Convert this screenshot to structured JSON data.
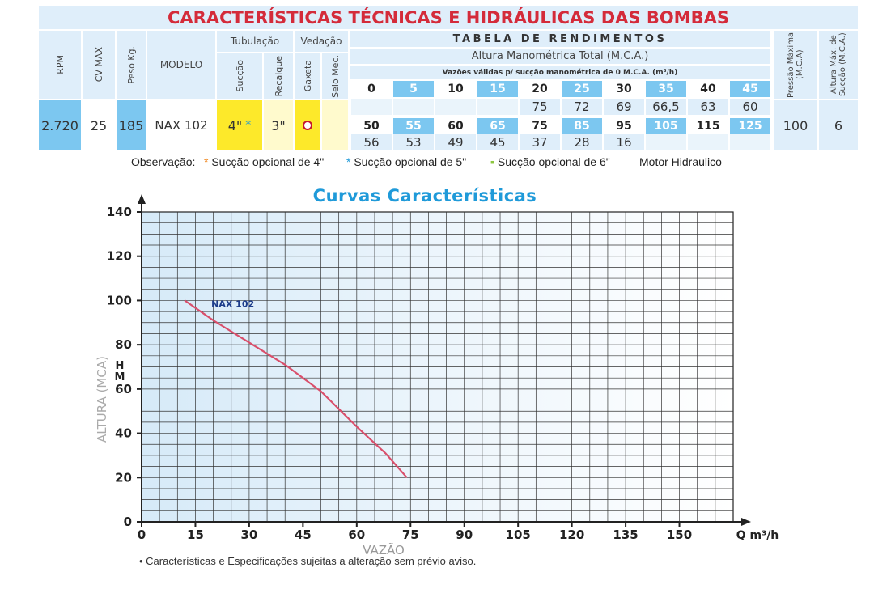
{
  "title": "CARACTERÍSTICAS TÉCNICAS E HIDRÁULICAS DAS BOMBAS",
  "table": {
    "headers": {
      "rpm": "RPM",
      "cv_max": "CV MAX",
      "peso": "Peso Kg.",
      "modelo": "MODELO",
      "tubulacao": "Tubulação",
      "succao": "Sucção",
      "recalque": "Recalque",
      "vedacao": "Vedação",
      "gaxeta": "Gaxeta",
      "selo_mec": "Selo Mec.",
      "tabela_rendimentos": "TABELA DE RENDIMENTOS",
      "altura_manometrica": "Altura Manométrica Total (M.C.A.)",
      "vazoes_validas": "Vazões válidas p/ sucção manométrica de 0 M.C.A. (m³/h)",
      "pressao_maxima": "Pressão Máxima (M.C.A)",
      "altura_max_succao": "Altura Máx. de Sucção (M.C.A.)"
    },
    "row": {
      "rpm": "2.720",
      "cv_max": "25",
      "peso": "185",
      "modelo": "NAX 102",
      "succao": "4\"",
      "succao_mark": "*",
      "recalque": "3\"",
      "pressao_maxima": "100",
      "altura_max_succao": "6"
    },
    "heights_row1": [
      "0",
      "5",
      "10",
      "15",
      "20",
      "25",
      "30",
      "35",
      "40",
      "45"
    ],
    "flows_row1": [
      "",
      "",
      "",
      "",
      "75",
      "72",
      "69",
      "66,5",
      "63",
      "60"
    ],
    "heights_row2": [
      "50",
      "55",
      "60",
      "65",
      "75",
      "85",
      "95",
      "105",
      "115",
      "125"
    ],
    "flows_row2": [
      "56",
      "53",
      "49",
      "45",
      "37",
      "28",
      "16",
      "",
      "",
      ""
    ]
  },
  "observacao": {
    "label": "Observação:",
    "items": [
      {
        "mark": "*",
        "text": "Sucção opcional de 4\"",
        "color": "#f08a24"
      },
      {
        "mark": "*",
        "text": "Sucção opcional de 5\"",
        "color": "#1f9ad9"
      },
      {
        "mark": "▪",
        "text": "Sucção opcional de 6\"",
        "color": "#8cc63f"
      }
    ],
    "motor": "Motor Hidraulico"
  },
  "chart_title": "Curvas Características",
  "chart_data": {
    "type": "line",
    "xlabel": "VAZÃO",
    "x_unit": "Q m³/h",
    "ylabel": "ALTURA (MCA)",
    "y_unit": "H M",
    "xlim": [
      0,
      165
    ],
    "ylim": [
      0,
      140
    ],
    "x_ticks": [
      0,
      15,
      30,
      45,
      60,
      75,
      90,
      105,
      120,
      135,
      150
    ],
    "y_ticks": [
      0,
      20,
      40,
      60,
      80,
      100,
      120,
      140
    ],
    "grid": true,
    "series": [
      {
        "name": "NAX 102",
        "color": "#d94f6b",
        "x": [
          12,
          20,
          30,
          40,
          50,
          60,
          68,
          74
        ],
        "y": [
          100,
          91,
          81,
          71,
          59,
          43,
          31,
          20
        ]
      }
    ]
  },
  "note": "• Características e Especificações sujeitas a alteração sem prévio aviso."
}
